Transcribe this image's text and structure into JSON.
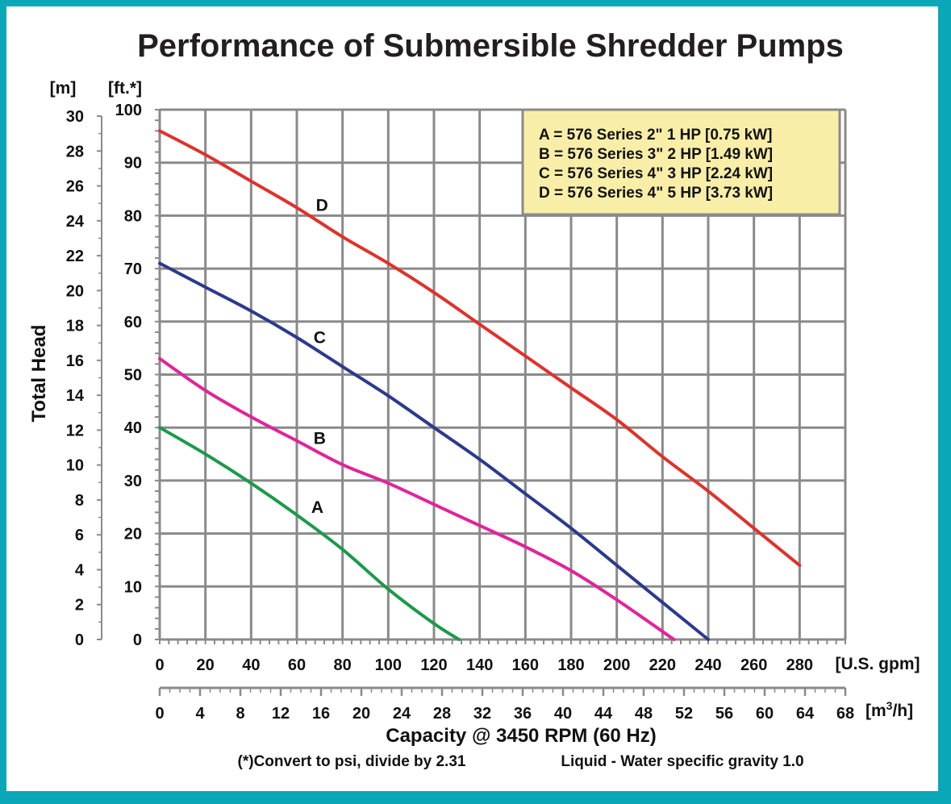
{
  "chart_data": {
    "type": "line",
    "title": "Performance of Submersible Shredder Pumps",
    "xlabel": "Capacity @ 3450 RPM (60 Hz)",
    "ylabel": "Total Head",
    "x_unit_primary": "[U.S. gpm]",
    "x_unit_secondary": "[m",
    "x_unit_secondary_sup": "3",
    "x_unit_secondary_end": "/h]",
    "y_unit_primary": "[ft.*]",
    "y_unit_secondary": "[m]",
    "xlim": [
      0,
      300
    ],
    "ylim": [
      0,
      100
    ],
    "x_ticks_gpm": [
      "0",
      "20",
      "40",
      "60",
      "80",
      "100",
      "120",
      "140",
      "160",
      "180",
      "200",
      "220",
      "240",
      "260",
      "280"
    ],
    "x_ticks_m3h": [
      "0",
      "4",
      "8",
      "12",
      "16",
      "20",
      "24",
      "28",
      "32",
      "36",
      "40",
      "44",
      "48",
      "52",
      "56",
      "60",
      "64",
      "68"
    ],
    "y_ticks_ft": [
      "0",
      "10",
      "20",
      "30",
      "40",
      "50",
      "60",
      "70",
      "80",
      "90",
      "100"
    ],
    "y_ticks_m": [
      "0",
      "2",
      "4",
      "6",
      "8",
      "10",
      "12",
      "14",
      "16",
      "18",
      "20",
      "22",
      "24",
      "26",
      "28",
      "30"
    ],
    "grid": true,
    "legend_position": "top-right",
    "legend": [
      "A = 576 Series 2\" 1 HP [0.75 kW]",
      "B = 576 Series 3\" 2 HP [1.49 kW]",
      "C = 576 Series 4\" 3 HP [2.24 kW]",
      "D = 576 Series 4\" 5 HP [3.73 kW]"
    ],
    "series": [
      {
        "name": "A",
        "color": "#1a9a4a",
        "x": [
          0,
          20,
          40,
          60,
          80,
          100,
          120,
          131
        ],
        "y": [
          40,
          35,
          29.5,
          23.5,
          17,
          9.5,
          3,
          0
        ]
      },
      {
        "name": "B",
        "color": "#e0249a",
        "x": [
          0,
          20,
          40,
          60,
          80,
          100,
          120,
          140,
          160,
          180,
          200,
          225
        ],
        "y": [
          53,
          47,
          42,
          37.5,
          33,
          29.5,
          25.5,
          21.5,
          17.5,
          13,
          7.5,
          0
        ]
      },
      {
        "name": "C",
        "color": "#2b3a8c",
        "x": [
          0,
          20,
          40,
          60,
          80,
          100,
          120,
          140,
          160,
          180,
          200,
          220,
          240
        ],
        "y": [
          71,
          66.5,
          62,
          57,
          51.5,
          46,
          40,
          34,
          27.5,
          21,
          14,
          7,
          0
        ]
      },
      {
        "name": "D",
        "color": "#e0312b",
        "x": [
          0,
          20,
          40,
          60,
          80,
          100,
          120,
          140,
          160,
          180,
          200,
          220,
          240,
          260,
          280
        ],
        "y": [
          96,
          91.5,
          86.5,
          81.5,
          76,
          71,
          65.5,
          59.5,
          53.5,
          47.5,
          41.5,
          34.5,
          28,
          21,
          14
        ]
      }
    ],
    "curve_labels": [
      {
        "text": "A",
        "x": 69,
        "y": 25
      },
      {
        "text": "B",
        "x": 70,
        "y": 38
      },
      {
        "text": "C",
        "x": 70,
        "y": 57
      },
      {
        "text": "D",
        "x": 71,
        "y": 82
      }
    ],
    "notes": [
      "(*)Convert to psi, divide by 2.31",
      "Liquid - Water specific gravity 1.0"
    ]
  }
}
